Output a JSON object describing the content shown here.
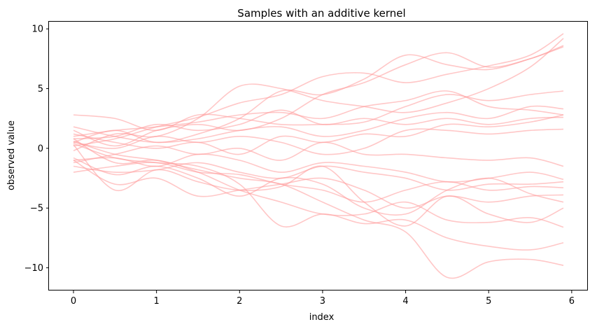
{
  "chart_data": {
    "type": "line",
    "title": "Samples with an additive kernel",
    "xlabel": "index",
    "ylabel": "observed value",
    "xlim": [
      -0.295,
      6.195
    ],
    "ylim": [
      -11.9,
      10.6
    ],
    "xticks": [
      0,
      1,
      2,
      3,
      4,
      5,
      6
    ],
    "yticks": [
      -10,
      -5,
      0,
      5,
      10
    ],
    "grid": false,
    "legend": false,
    "line_color": "#ff9999",
    "line_alpha": 0.55,
    "x": [
      0.0,
      0.5,
      1.0,
      1.5,
      2.0,
      2.5,
      3.0,
      3.5,
      4.0,
      4.5,
      5.0,
      5.5,
      5.9
    ],
    "series": [
      {
        "values": [
          0.5,
          1.5,
          0.5,
          1.2,
          2.5,
          4.8,
          4.5,
          5.8,
          7.8,
          7.0,
          6.6,
          7.5,
          8.5
        ]
      },
      {
        "values": [
          0.2,
          0.8,
          1.8,
          2.6,
          3.8,
          4.5,
          6.0,
          6.3,
          5.5,
          6.2,
          6.9,
          7.8,
          9.6
        ]
      },
      {
        "values": [
          -0.2,
          1.2,
          1.0,
          2.5,
          5.2,
          5.0,
          4.0,
          3.5,
          3.0,
          3.8,
          5.0,
          6.8,
          9.2
        ]
      },
      {
        "values": [
          1.5,
          0.2,
          1.5,
          2.0,
          1.5,
          2.5,
          4.5,
          5.5,
          7.0,
          8.0,
          6.8,
          7.5,
          8.6
        ]
      },
      {
        "values": [
          2.8,
          2.5,
          1.5,
          2.8,
          2.5,
          2.0,
          2.0,
          2.2,
          3.5,
          4.5,
          4.0,
          4.5,
          4.8
        ]
      },
      {
        "values": [
          1.0,
          1.5,
          1.8,
          2.2,
          2.8,
          3.0,
          2.5,
          3.5,
          4.0,
          4.8,
          3.5,
          3.2,
          2.8
        ]
      },
      {
        "values": [
          1.8,
          1.0,
          0.5,
          0.8,
          1.5,
          1.8,
          1.0,
          1.5,
          2.5,
          3.0,
          2.5,
          3.5,
          3.3
        ]
      },
      {
        "values": [
          0.8,
          1.0,
          2.0,
          1.5,
          2.0,
          3.2,
          2.0,
          2.5,
          2.0,
          2.5,
          2.0,
          2.5,
          2.6
        ]
      },
      {
        "values": [
          1.2,
          0.5,
          0.0,
          0.5,
          -0.5,
          1.0,
          0.5,
          1.2,
          1.0,
          2.0,
          1.8,
          2.2,
          2.8
        ]
      },
      {
        "values": [
          0.5,
          0.0,
          1.0,
          0.5,
          1.0,
          0.5,
          -0.5,
          0.0,
          1.5,
          1.5,
          1.2,
          1.5,
          1.6
        ]
      },
      {
        "values": [
          -1.2,
          -0.5,
          0.2,
          -0.5,
          0.0,
          -1.0,
          0.5,
          -0.5,
          -0.5,
          -0.8,
          -1.0,
          -0.8,
          -1.5
        ]
      },
      {
        "values": [
          -1.0,
          -0.8,
          -1.5,
          -0.5,
          -1.0,
          -2.0,
          -1.2,
          -1.5,
          -2.0,
          -2.8,
          -2.5,
          -2.0,
          -2.6
        ]
      },
      {
        "values": [
          -1.5,
          -2.0,
          -1.8,
          -1.2,
          -2.0,
          -2.5,
          -1.5,
          -2.0,
          -2.5,
          -3.5,
          -3.0,
          -3.0,
          -2.8
        ]
      },
      {
        "values": [
          -2.0,
          -1.5,
          -1.2,
          -2.0,
          -2.2,
          -3.0,
          -3.5,
          -4.5,
          -3.5,
          -2.8,
          -3.5,
          -3.2,
          -3.3
        ]
      },
      {
        "values": [
          -1.0,
          -3.0,
          -2.5,
          -4.0,
          -3.5,
          -3.0,
          -2.5,
          -3.5,
          -5.0,
          -4.0,
          -4.5,
          -4.0,
          -3.9
        ]
      },
      {
        "values": [
          -0.8,
          -2.2,
          -1.5,
          -2.5,
          -4.0,
          -2.5,
          -3.0,
          -5.0,
          -5.5,
          -3.5,
          -2.5,
          -3.8,
          -4.5
        ]
      },
      {
        "values": [
          0.3,
          -3.5,
          -1.8,
          -2.8,
          -3.5,
          -3.2,
          -1.5,
          -4.5,
          -6.5,
          -4.0,
          -5.5,
          -6.2,
          -5.0
        ]
      },
      {
        "values": [
          0.8,
          -1.2,
          -1.0,
          -2.0,
          -3.5,
          -4.5,
          -5.5,
          -5.5,
          -4.5,
          -6.0,
          -6.2,
          -5.8,
          -6.6
        ]
      },
      {
        "values": [
          0.4,
          -0.8,
          -1.2,
          -1.5,
          -3.0,
          -6.5,
          -5.5,
          -6.3,
          -6.0,
          -7.5,
          -8.2,
          -8.5,
          -7.9
        ]
      },
      {
        "values": [
          0.6,
          -0.5,
          -1.0,
          -1.8,
          -2.5,
          -3.0,
          -4.5,
          -6.0,
          -7.0,
          -10.8,
          -9.5,
          -9.3,
          -9.8
        ]
      }
    ]
  }
}
